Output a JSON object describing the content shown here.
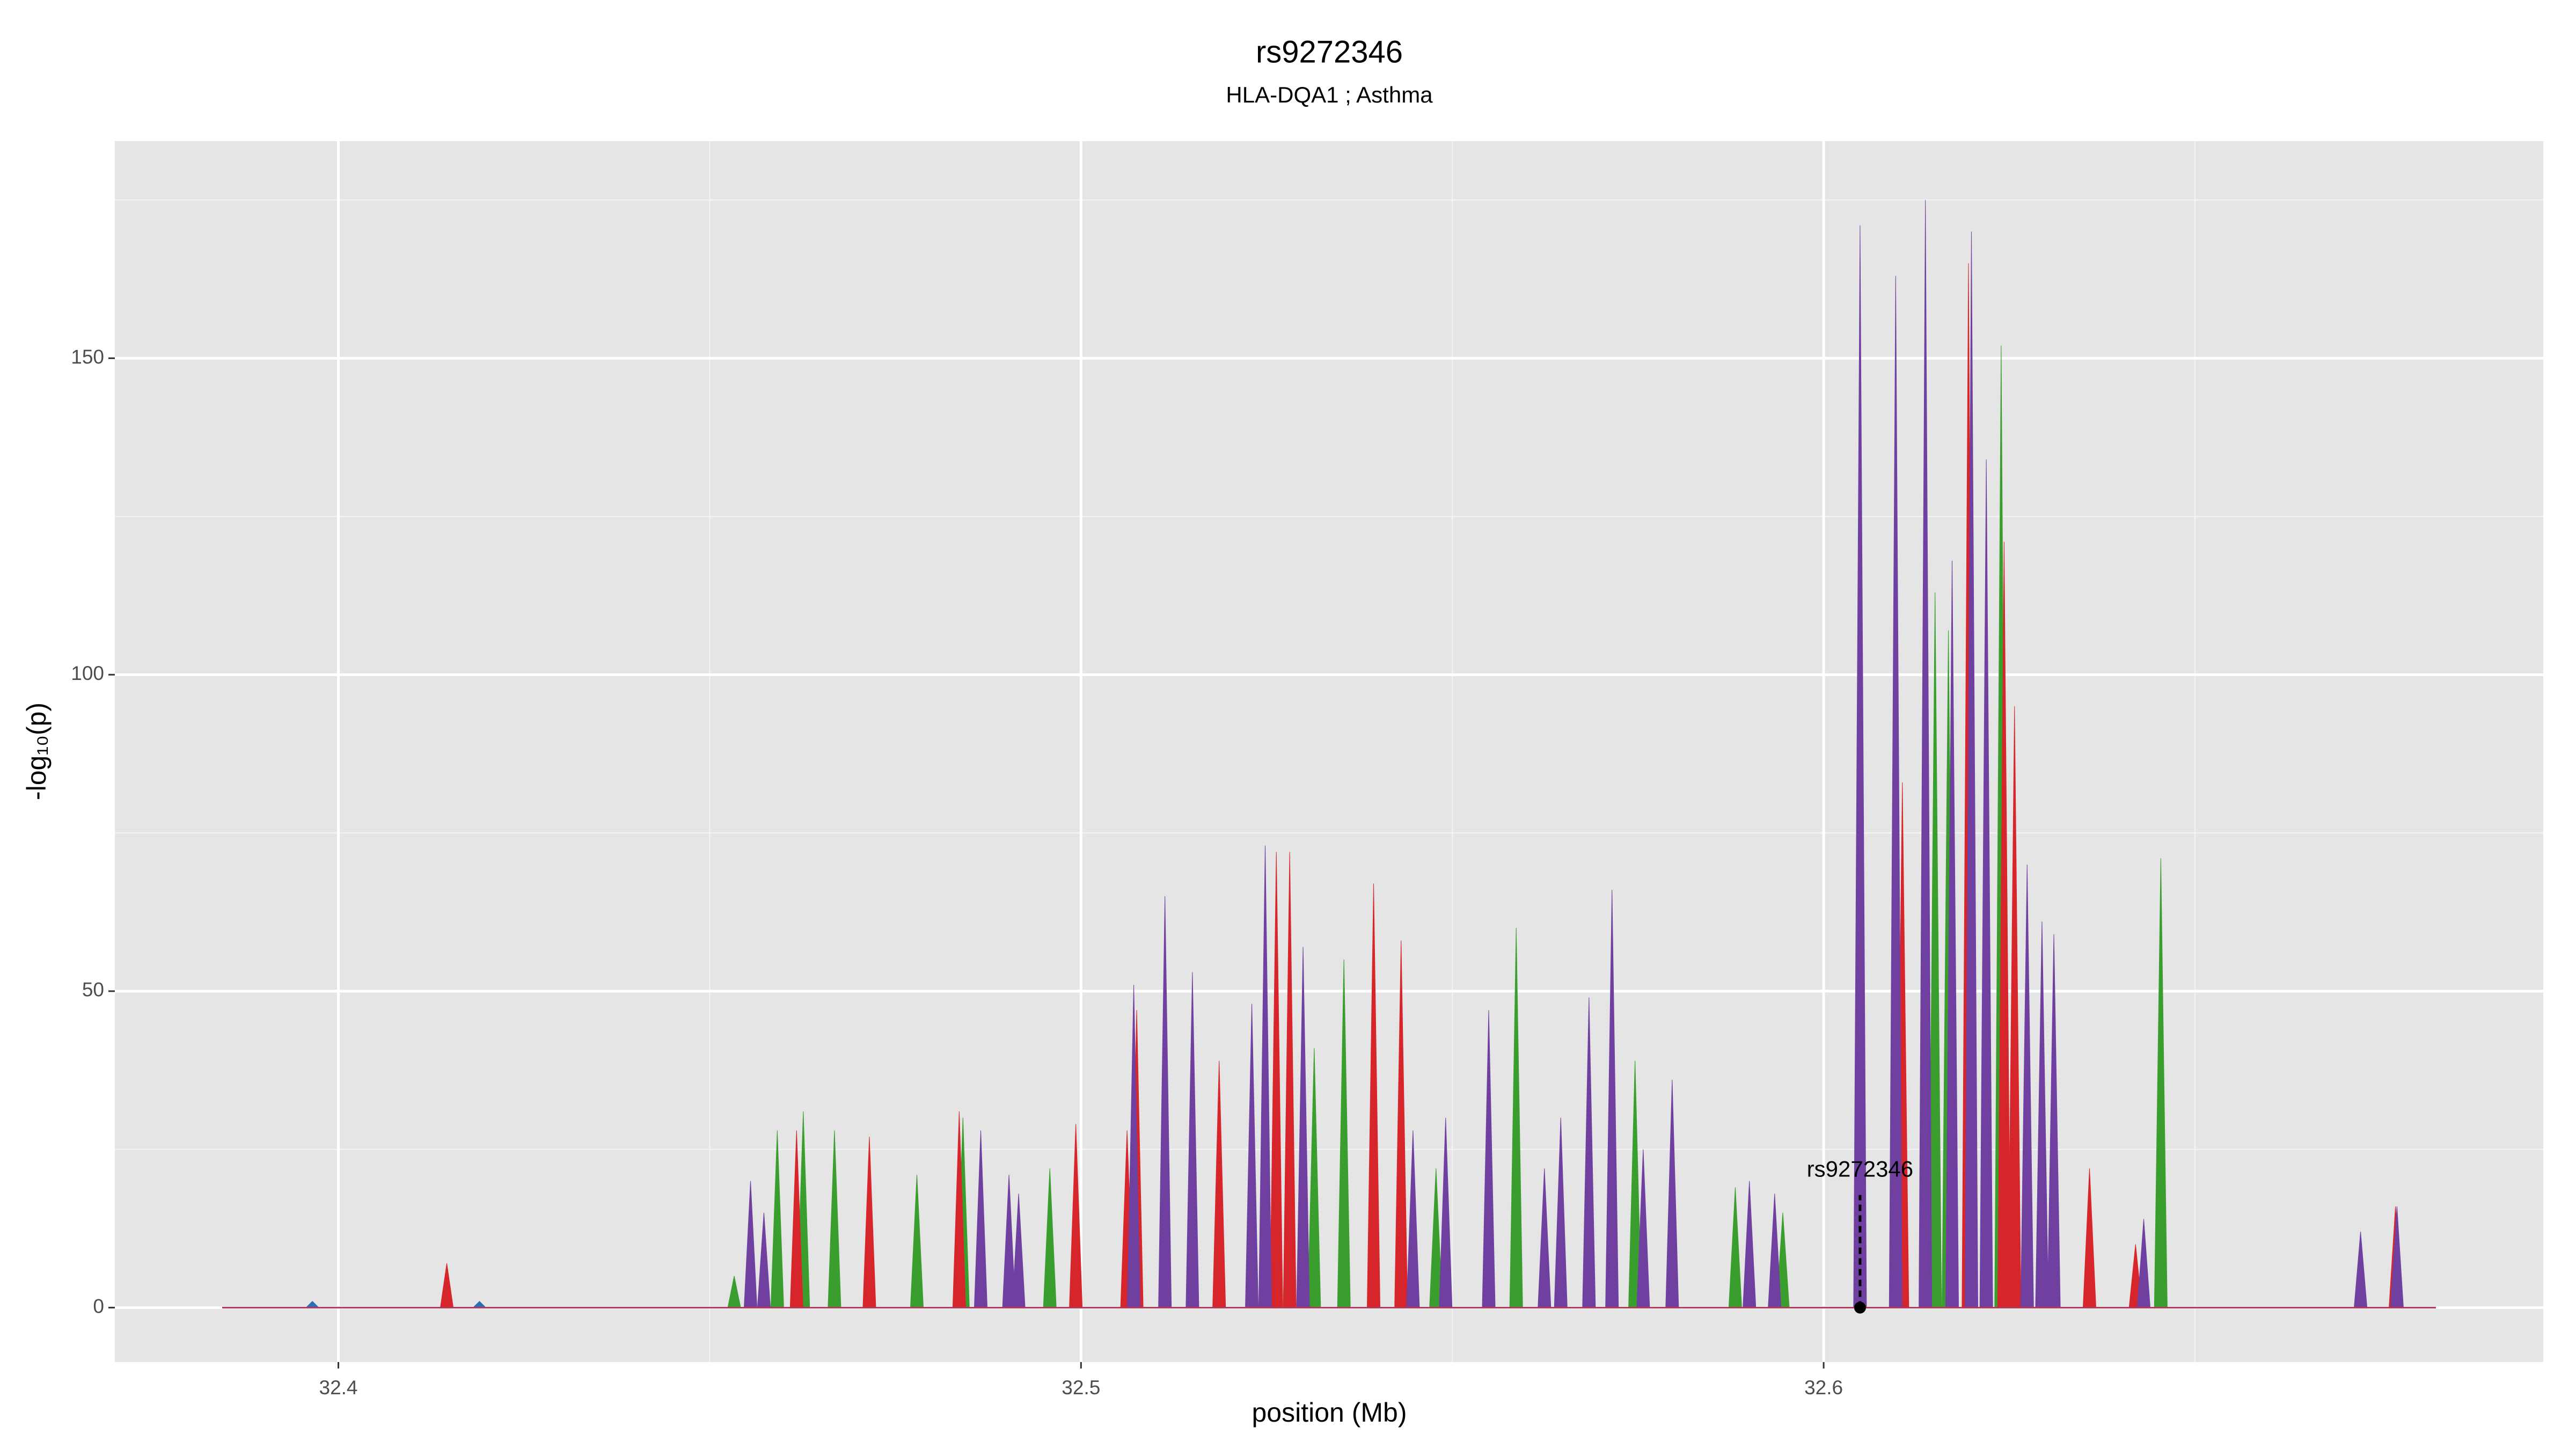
{
  "chart_data": {
    "type": "area",
    "title": "rs9272346",
    "subtitle": "HLA-DQA1 ; Asthma",
    "x_label": "position (Mb)",
    "y_label": "-log₁₀(p)",
    "xlim": [
      32.3699,
      32.6969
    ],
    "ylim": [
      -8.6,
      184.3
    ],
    "xticks": [
      32.4,
      32.5,
      32.6
    ],
    "yticks": [
      0,
      50,
      100,
      150
    ],
    "grid": true,
    "series": [
      {
        "name": "green",
        "color": "#3a9e2e",
        "x": [
          32.4533,
          32.4591,
          32.4626,
          32.4668,
          32.4779,
          32.4841,
          32.4958,
          32.5314,
          32.5354,
          32.5478,
          32.5586,
          32.5746,
          32.5881,
          32.5945,
          32.615,
          32.6168,
          32.6239,
          32.6454
        ],
        "values": [
          5,
          28,
          31,
          28,
          21,
          30,
          22,
          41,
          55,
          22,
          60,
          39,
          19,
          15,
          113,
          107,
          152,
          71
        ]
      },
      {
        "name": "red",
        "color": "#d7262b",
        "x": [
          32.4146,
          32.4617,
          32.4715,
          32.4836,
          32.4993,
          32.5062,
          32.5075,
          32.5186,
          32.5263,
          32.5281,
          32.5394,
          32.5431,
          32.6106,
          32.6195,
          32.6243,
          32.6257,
          32.6358,
          32.642,
          32.677
        ],
        "values": [
          7,
          28,
          27,
          31,
          29,
          28,
          47,
          39,
          72,
          72,
          67,
          58,
          83,
          165,
          121,
          95,
          22,
          10,
          16
        ]
      },
      {
        "name": "purple",
        "color": "#7040a0",
        "x": [
          32.4555,
          32.4573,
          32.4865,
          32.4903,
          32.4916,
          32.5071,
          32.5113,
          32.515,
          32.523,
          32.5248,
          32.5299,
          32.5447,
          32.5491,
          32.5549,
          32.5624,
          32.5646,
          32.5684,
          32.5715,
          32.5757,
          32.5796,
          32.59,
          32.5934,
          32.6049,
          32.6097,
          32.6137,
          32.6173,
          32.6199,
          32.6219,
          32.6274,
          32.6294,
          32.631,
          32.6431,
          32.6723,
          32.6772
        ],
        "values": [
          20,
          15,
          28,
          21,
          18,
          51,
          65,
          53,
          48,
          73,
          57,
          28,
          30,
          47,
          22,
          30,
          49,
          66,
          25,
          36,
          20,
          18,
          171,
          163,
          175,
          118,
          170,
          134,
          70,
          61,
          59,
          14,
          12,
          16
        ]
      },
      {
        "name": "blue",
        "color": "#2b6fb5",
        "x": [
          32.3965,
          32.419
        ],
        "values": [
          1,
          1
        ]
      }
    ],
    "annotation": {
      "text": "rs9272346",
      "x": 32.6049,
      "y": 0
    }
  }
}
